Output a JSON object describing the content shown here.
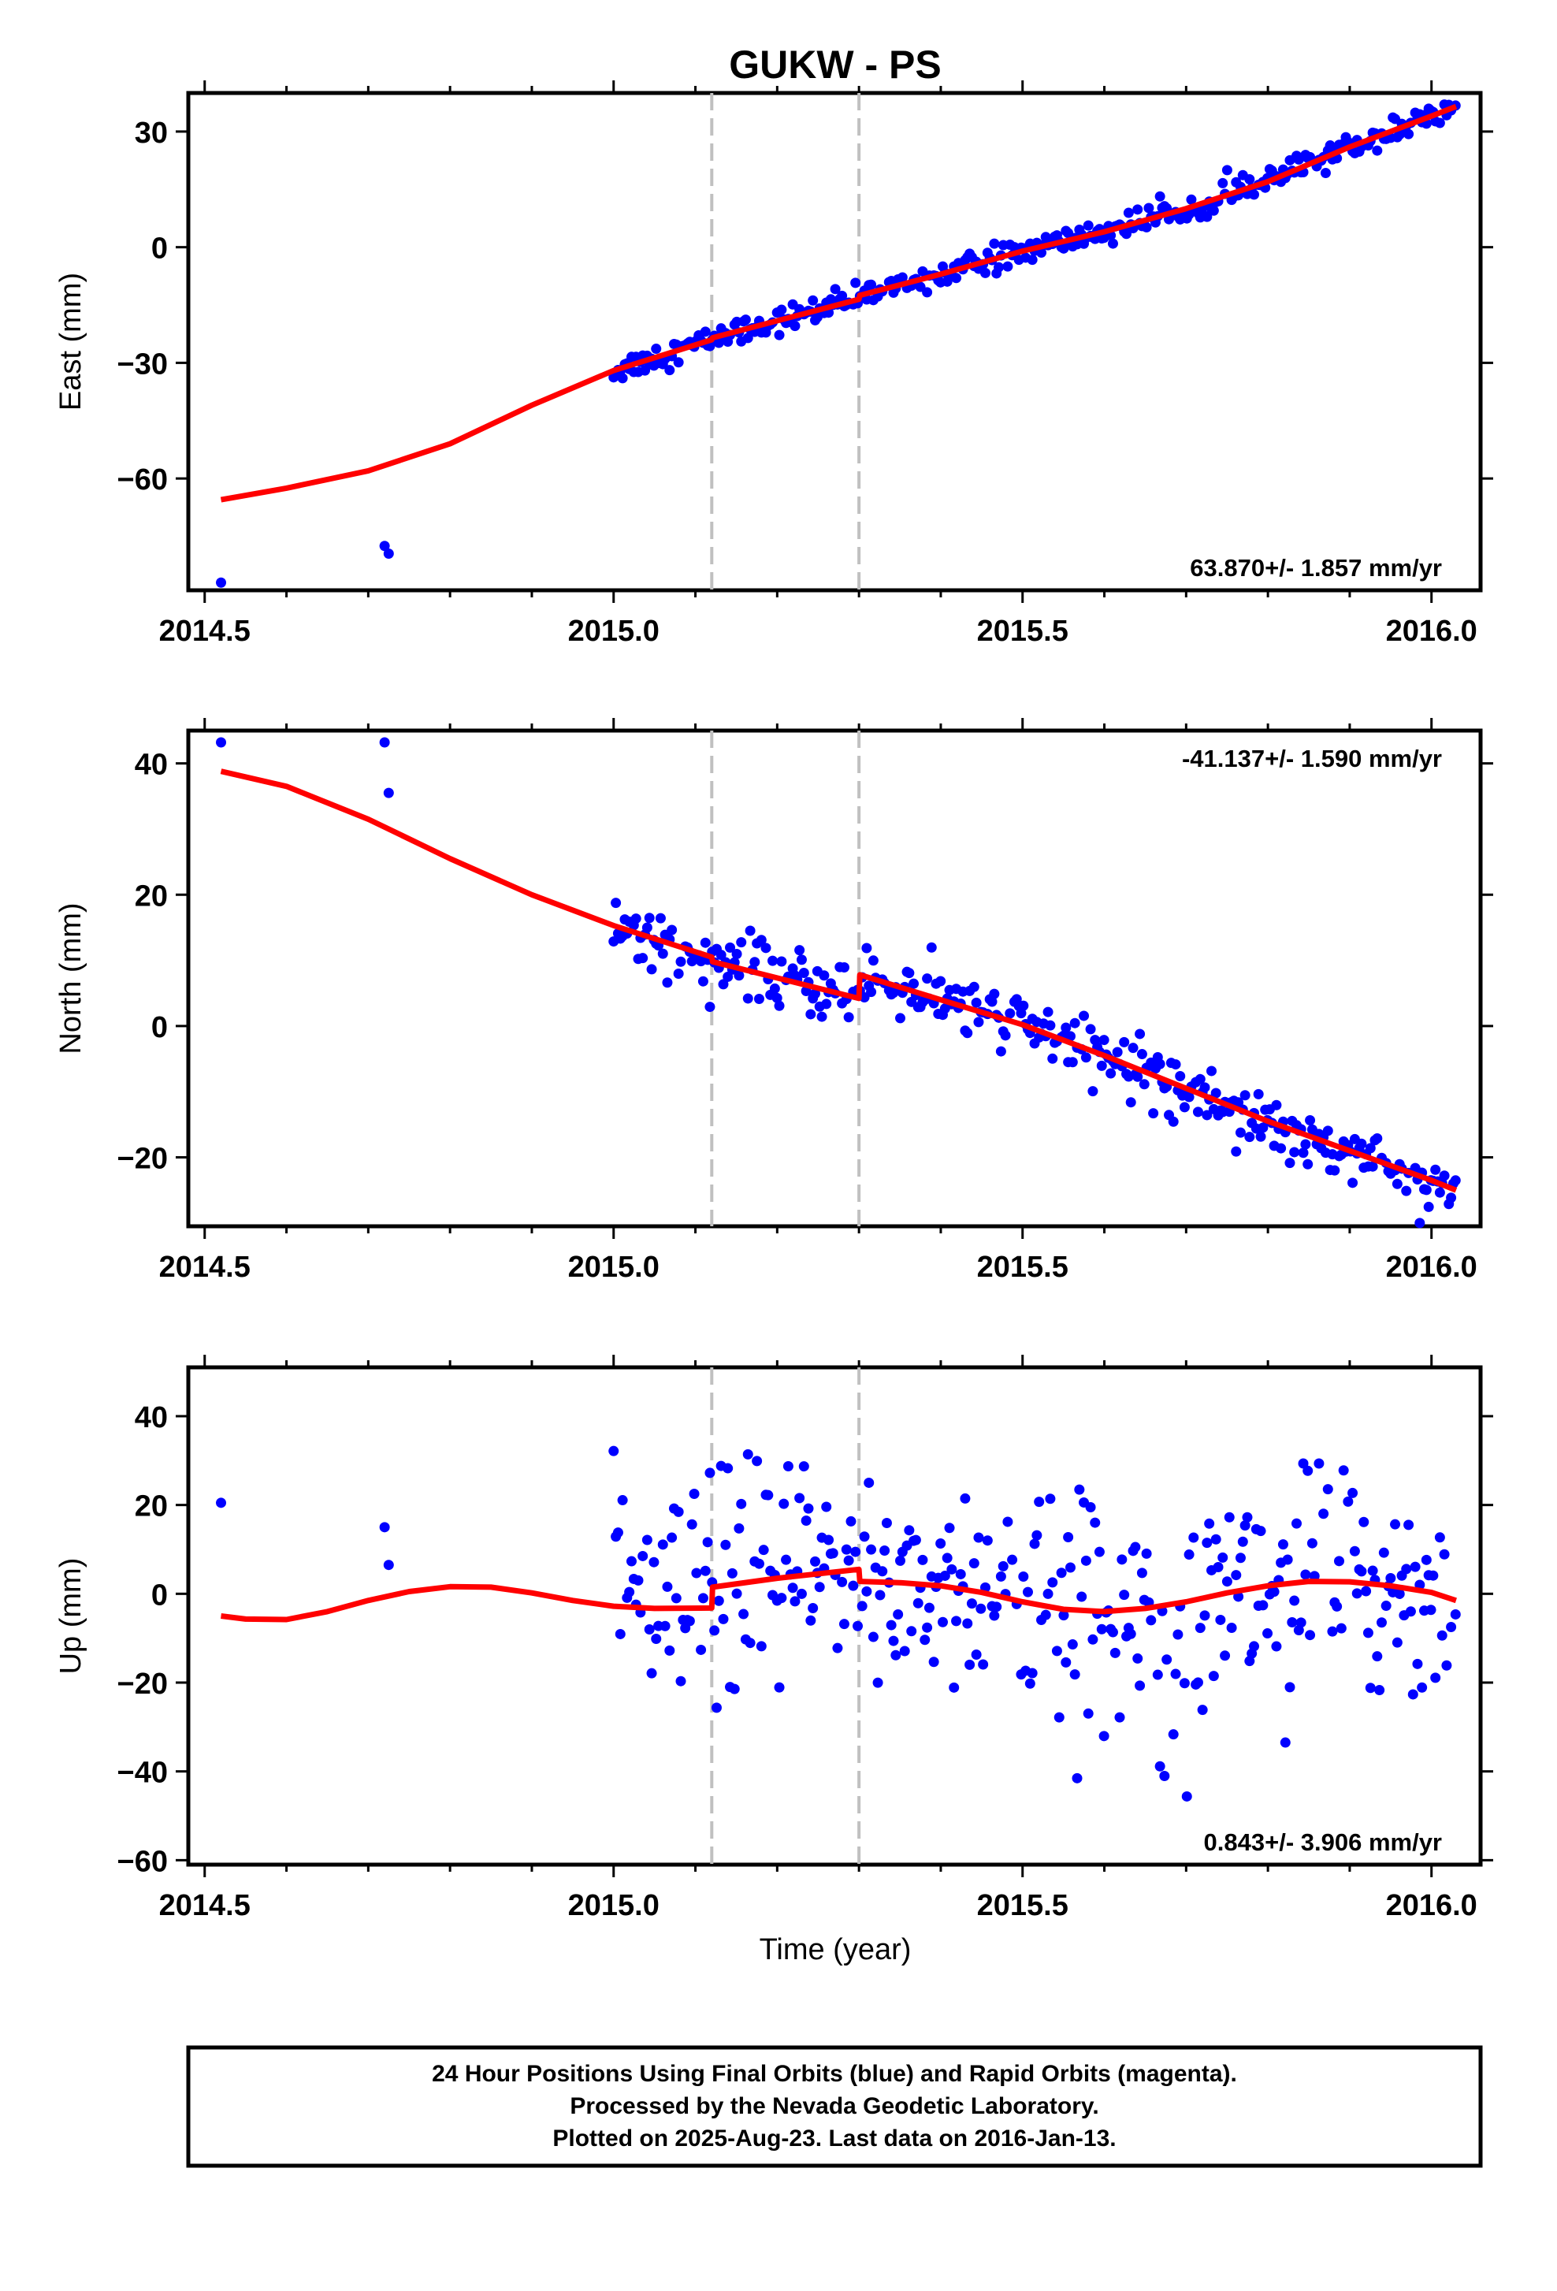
{
  "chart_data": {
    "type": "scatter",
    "title": "GUKW - PS",
    "xlabel": "Time (year)",
    "xlim": [
      2014.48,
      2016.06
    ],
    "x_ticks": [
      "2014.5",
      "2015.0",
      "2015.5",
      "2016.0"
    ],
    "breaks_x": [
      2015.12,
      2015.3
    ],
    "colors": {
      "points": "#0000ff",
      "model": "#ff0000",
      "breaks": "#c0c0c0"
    },
    "panels": [
      {
        "name": "east",
        "ylabel": "East (mm)",
        "ylim": [
          -89,
          40
        ],
        "y_ticks": [
          "30",
          "0",
          "−30",
          "−60"
        ],
        "y_tick_values": [
          30,
          0,
          -30,
          -60
        ],
        "rate_text": "63.870+/- 1.857 mm/yr",
        "rate_position": "bottom-right",
        "model": [
          [
            2014.52,
            -65.5
          ],
          [
            2014.6,
            -62.5
          ],
          [
            2014.7,
            -58
          ],
          [
            2014.8,
            -51
          ],
          [
            2014.9,
            -41
          ],
          [
            2015.0,
            -32
          ],
          [
            2015.12,
            -24
          ],
          [
            2015.121,
            -23.5
          ],
          [
            2015.3,
            -13.5
          ],
          [
            2015.301,
            -12.5
          ],
          [
            2015.4,
            -7
          ],
          [
            2015.5,
            -1
          ],
          [
            2015.6,
            4
          ],
          [
            2015.7,
            10
          ],
          [
            2015.8,
            17
          ],
          [
            2015.9,
            26
          ],
          [
            2016.0,
            34
          ],
          [
            2016.03,
            36.5
          ]
        ],
        "outliers": [
          [
            2014.52,
            -87
          ],
          [
            2014.72,
            -77.5
          ],
          [
            2014.725,
            -79.5
          ]
        ]
      },
      {
        "name": "north",
        "ylabel": "North (mm)",
        "ylim": [
          -30.5,
          45
        ],
        "y_ticks": [
          "40",
          "20",
          "0",
          "−20"
        ],
        "y_tick_values": [
          40,
          20,
          0,
          -20
        ],
        "rate_text": "-41.137+/- 1.590 mm/yr",
        "rate_position": "top-right",
        "model": [
          [
            2014.52,
            38.8
          ],
          [
            2014.6,
            36.5
          ],
          [
            2014.7,
            31.5
          ],
          [
            2014.8,
            25.5
          ],
          [
            2014.9,
            20
          ],
          [
            2015.0,
            15.3
          ],
          [
            2015.12,
            10.5
          ],
          [
            2015.121,
            9.8
          ],
          [
            2015.3,
            4.2
          ],
          [
            2015.301,
            7.8
          ],
          [
            2015.4,
            4
          ],
          [
            2015.5,
            0.2
          ],
          [
            2015.6,
            -4.5
          ],
          [
            2015.7,
            -9.5
          ],
          [
            2015.8,
            -14.5
          ],
          [
            2015.9,
            -19
          ],
          [
            2016.0,
            -23.5
          ],
          [
            2016.03,
            -25
          ]
        ],
        "outliers": [
          [
            2014.52,
            43.2
          ],
          [
            2014.72,
            43.2
          ],
          [
            2014.725,
            35.5
          ]
        ]
      },
      {
        "name": "up",
        "ylabel": "Up (mm)",
        "ylim": [
          -61,
          51
        ],
        "y_ticks": [
          "40",
          "20",
          "0",
          "−20",
          "−40",
          "−60"
        ],
        "y_tick_values": [
          40,
          20,
          0,
          -20,
          -40,
          -60
        ],
        "rate_text": "0.843+/- 3.906 mm/yr",
        "rate_position": "bottom-right",
        "model": [
          [
            2014.52,
            -5
          ],
          [
            2014.55,
            -5.7
          ],
          [
            2014.6,
            -5.8
          ],
          [
            2014.65,
            -4
          ],
          [
            2014.7,
            -1.5
          ],
          [
            2014.75,
            0.5
          ],
          [
            2014.8,
            1.6
          ],
          [
            2014.85,
            1.5
          ],
          [
            2014.9,
            0.2
          ],
          [
            2014.95,
            -1.5
          ],
          [
            2015.0,
            -2.8
          ],
          [
            2015.05,
            -3.3
          ],
          [
            2015.12,
            -3.2
          ],
          [
            2015.121,
            1.5
          ],
          [
            2015.2,
            3.5
          ],
          [
            2015.3,
            5.5
          ],
          [
            2015.301,
            2.8
          ],
          [
            2015.35,
            2.5
          ],
          [
            2015.4,
            1.8
          ],
          [
            2015.45,
            0.3
          ],
          [
            2015.5,
            -1.8
          ],
          [
            2015.55,
            -3.5
          ],
          [
            2015.6,
            -4
          ],
          [
            2015.65,
            -3.3
          ],
          [
            2015.7,
            -1.8
          ],
          [
            2015.75,
            0.2
          ],
          [
            2015.8,
            1.8
          ],
          [
            2015.85,
            2.8
          ],
          [
            2015.9,
            2.7
          ],
          [
            2015.95,
            1.8
          ],
          [
            2016.0,
            0.3
          ],
          [
            2016.03,
            -1.5
          ]
        ],
        "outliers": [
          [
            2014.52,
            20.5
          ],
          [
            2014.72,
            15
          ],
          [
            2014.725,
            6.5
          ]
        ]
      }
    ]
  },
  "footer": {
    "line1": "24 Hour Positions Using Final Orbits (blue) and Rapid Orbits (magenta).",
    "line2": "Processed by the Nevada Geodetic Laboratory.",
    "line3": "Plotted on 2025-Aug-23. Last data on 2016-Jan-13."
  }
}
